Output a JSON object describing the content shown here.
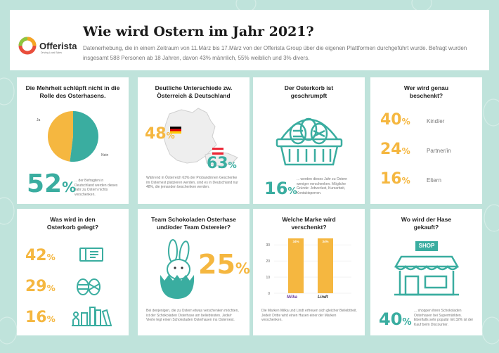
{
  "header": {
    "logo_text": "Offerista",
    "logo_sub": "Driving Local Sales",
    "title": "Wie wird Ostern im Jahr 2021?",
    "subtitle": "Datenerhebung, die in einem Zeitraum von 11.März bis 17.März von der Offerista Group über die eigenen Plattformen durchgeführt wurde. Befragt wurden insgesamt 588 Personen ab 18 Jahren, davon 43% männlich,  55% weiblich und 3% divers."
  },
  "cards": {
    "osterhase": {
      "title": "Die Mehrheit schlüpft nicht in die Rolle des Osterhasens.",
      "big_value": "52",
      "big_unit": "%",
      "desc": "... der Befragten in Deutschland werden dieses Jahr zu Ostern nichts verschenken."
    },
    "unterschiede": {
      "title": "Deutliche Unterschiede zw. Österreich & Deutschland",
      "de_value": "48",
      "at_value": "63",
      "unit": "%",
      "desc": "Während in Österreich 63% der Probandinnen Geschenke im Osternest platzieren werden, sind es in Deutschland nur 48%, die jemanden beschenken werden."
    },
    "osterkorb": {
      "title": "Der Osterkorb ist geschrumpft",
      "big_value": "16",
      "big_unit": "%",
      "desc": "... werden dieses Jahr zu Ostern weniger verschenken. Mögliche Gründe: Jobverlust, Kurzarbeit, Kontaktsperren."
    },
    "beschenkt": {
      "title": "Wer wird genau beschenkt?"
    },
    "korb_inhalt": {
      "title": "Was wird in den Osterkorb gelegt?",
      "values": [
        "42",
        "29",
        "16"
      ],
      "unit": "%"
    },
    "team": {
      "title": "Team Schokoladen Osterhase und/oder Team Ostereier?",
      "big_value": "25",
      "big_unit": "%",
      "desc": "Bei denjenigen, die zu Ostern etwas verschenken möchten, ist der Schokoladen Osterhase am beliebtesten. Jede/r Vierte legt einen Schokoladen Osterhasen ins Osternest."
    },
    "marke": {
      "title": "Welche Marke wird verschenkt?",
      "desc": "Die Marken Milka und Lindt erfreuen sich gleicher Beliebtheit. Jede/r Dritte wird einen Hasen einer der Marken verschenken.",
      "brand_labels": [
        "Milka",
        "Lindt"
      ]
    },
    "gekauft": {
      "title": "Wo wird der Hase gekauft?",
      "shop_label": "SHOP",
      "big_value": "40",
      "big_unit": "%",
      "desc": "... shoppen ihren Schokoladen Osterhasen bei Supermärkten. Ebenfalls sehr populär mit 32% ist der Kauf beim Discounter."
    }
  },
  "colors": {
    "teal": "#3aada0",
    "amber": "#f5b740",
    "background": "#bfe3db"
  },
  "chart_data": [
    {
      "type": "pie",
      "categories": [
        "Ja",
        "Nein"
      ],
      "values": [
        48,
        52
      ],
      "colors": [
        "#f5b740",
        "#3aada0"
      ]
    },
    {
      "type": "bar",
      "categories": [
        "Kind/er",
        "Partner/in",
        "Eltern"
      ],
      "values": [
        40,
        24,
        16
      ],
      "unit": "%"
    },
    {
      "type": "bar",
      "categories": [
        "Milka",
        "Lindt"
      ],
      "values": [
        34,
        34
      ],
      "data_labels": [
        "34%",
        "34%"
      ],
      "yticks": [
        0,
        10,
        20,
        30
      ],
      "ylim": [
        0,
        34
      ]
    }
  ]
}
